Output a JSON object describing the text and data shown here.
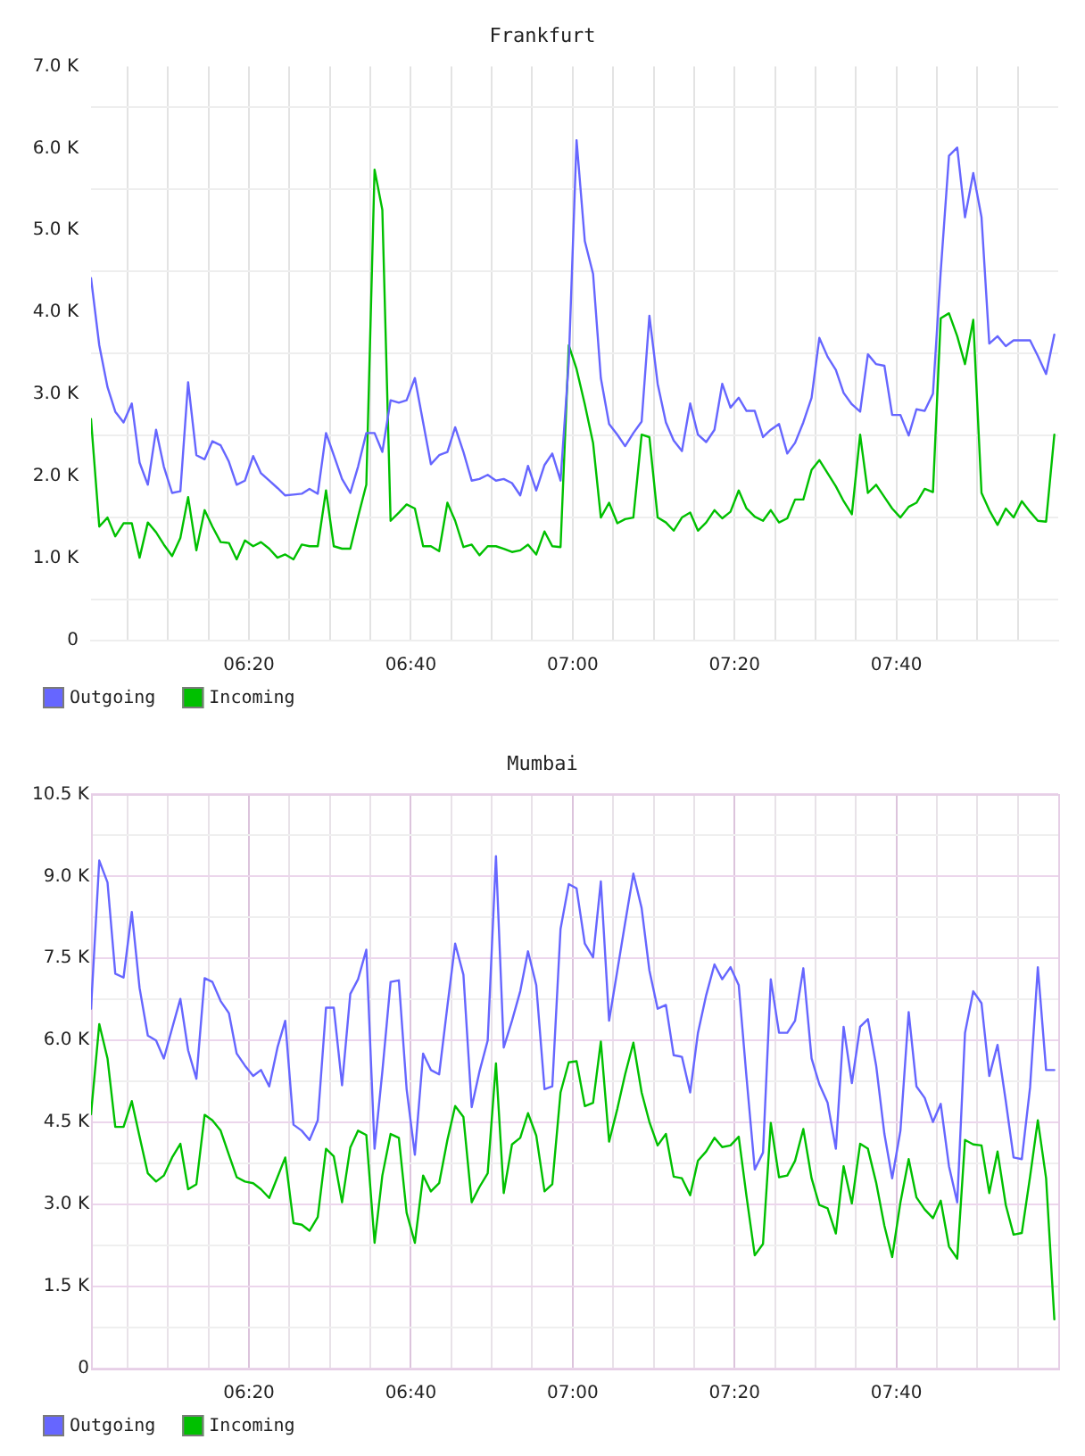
{
  "chart_data": [
    {
      "type": "line",
      "title": "Frankfurt",
      "x": [
        6.008,
        6.025,
        6.042,
        6.058,
        6.075,
        6.092,
        6.108,
        6.125,
        6.142,
        6.158,
        6.175,
        6.192,
        6.208,
        6.225,
        6.242,
        6.258,
        6.275,
        6.292,
        6.308,
        6.325,
        6.342,
        6.358,
        6.375,
        6.392,
        6.408,
        6.425,
        6.442,
        6.458,
        6.475,
        6.492,
        6.508,
        6.525,
        6.542,
        6.558,
        6.575,
        6.592,
        6.608,
        6.625,
        6.642,
        6.658,
        6.675,
        6.692,
        6.708,
        6.725,
        6.742,
        6.758,
        6.775,
        6.792,
        6.808,
        6.825,
        6.842,
        6.858,
        6.875,
        6.892,
        6.908,
        6.925,
        6.942,
        6.958,
        6.975,
        6.992,
        7.008,
        7.025,
        7.042,
        7.058,
        7.075,
        7.092,
        7.108,
        7.125,
        7.142,
        7.158,
        7.175,
        7.192,
        7.208,
        7.225,
        7.242,
        7.258,
        7.275,
        7.292,
        7.308,
        7.325,
        7.342,
        7.358,
        7.375,
        7.392,
        7.408,
        7.425,
        7.442,
        7.458,
        7.475,
        7.492,
        7.508,
        7.525,
        7.542,
        7.558,
        7.575,
        7.592,
        7.608,
        7.625,
        7.642,
        7.658,
        7.675,
        7.692,
        7.708,
        7.725,
        7.742,
        7.758,
        7.775,
        7.792,
        7.808,
        7.825,
        7.842,
        7.858,
        7.875,
        7.892,
        7.908,
        7.925,
        7.942,
        7.958,
        7.975,
        7.992
      ],
      "xlim": [
        6.008,
        8.0
      ],
      "xticks": [
        {
          "value": 6.0833,
          "label": null
        },
        {
          "value": 6.1667,
          "label": null
        },
        {
          "value": 6.25,
          "label": null
        },
        {
          "value": 6.3333,
          "label": "06:20"
        },
        {
          "value": 6.4167,
          "label": null
        },
        {
          "value": 6.5,
          "label": null
        },
        {
          "value": 6.5833,
          "label": null
        },
        {
          "value": 6.6667,
          "label": "06:40"
        },
        {
          "value": 6.75,
          "label": null
        },
        {
          "value": 6.8333,
          "label": null
        },
        {
          "value": 6.9167,
          "label": null
        },
        {
          "value": 7.0,
          "label": "07:00"
        },
        {
          "value": 7.0833,
          "label": null
        },
        {
          "value": 7.1667,
          "label": null
        },
        {
          "value": 7.25,
          "label": null
        },
        {
          "value": 7.3333,
          "label": "07:20"
        },
        {
          "value": 7.4167,
          "label": null
        },
        {
          "value": 7.5,
          "label": null
        },
        {
          "value": 7.5833,
          "label": null
        },
        {
          "value": 7.6667,
          "label": "07:40"
        },
        {
          "value": 7.75,
          "label": null
        },
        {
          "value": 7.8333,
          "label": null
        },
        {
          "value": 7.9167,
          "label": null
        }
      ],
      "ylim": [
        0,
        7000
      ],
      "yticks": [
        0,
        {
          "value": 500,
          "label": null
        },
        {
          "value": 1000,
          "label": "1.0 K"
        },
        {
          "value": 1500,
          "label": null
        },
        {
          "value": 2000,
          "label": "2.0 K"
        },
        {
          "value": 2500,
          "label": null
        },
        {
          "value": 3000,
          "label": "3.0 K"
        },
        {
          "value": 3500,
          "label": null
        },
        {
          "value": 4000,
          "label": "4.0 K"
        },
        {
          "value": 4500,
          "label": null
        },
        {
          "value": 5000,
          "label": "5.0 K"
        },
        {
          "value": 5500,
          "label": null
        },
        {
          "value": 6000,
          "label": "6.0 K"
        },
        {
          "value": 6500,
          "label": null
        },
        {
          "value": 7000,
          "label": "7.0 K"
        }
      ],
      "series": [
        {
          "name": "Outgoing",
          "color": "#6666ff",
          "values": [
            4420,
            3600,
            3090,
            2790,
            2660,
            2890,
            2170,
            1900,
            2570,
            2120,
            1800,
            1820,
            3150,
            2260,
            2210,
            2430,
            2380,
            2180,
            1900,
            1950,
            2250,
            2040,
            1950,
            1860,
            1770,
            1780,
            1790,
            1850,
            1790,
            2530,
            2260,
            1970,
            1800,
            2120,
            2530,
            2530,
            2300,
            2930,
            2900,
            2930,
            3200,
            2660,
            2150,
            2260,
            2300,
            2600,
            2300,
            1950,
            1970,
            2020,
            1950,
            1970,
            1920,
            1770,
            2130,
            1830,
            2140,
            2280,
            1950,
            3400,
            6100,
            4870,
            4470,
            3200,
            2640,
            2510,
            2370,
            2530,
            2670,
            3960,
            3130,
            2660,
            2440,
            2310,
            2890,
            2510,
            2420,
            2570,
            3130,
            2840,
            2960,
            2800,
            2800,
            2480,
            2570,
            2640,
            2280,
            2410,
            2660,
            2960,
            3690,
            3460,
            3300,
            3020,
            2880,
            2790,
            3490,
            3370,
            3350,
            2750,
            2750,
            2500,
            2820,
            2800,
            3010,
            4500,
            5910,
            6010,
            5160,
            5700,
            5160,
            3620,
            3710,
            3590,
            3660,
            3660,
            3660,
            3470,
            3250,
            3730
          ]
        },
        {
          "name": "Incoming",
          "color": "#00c000",
          "values": [
            2700,
            1390,
            1500,
            1270,
            1430,
            1430,
            1010,
            1440,
            1320,
            1170,
            1030,
            1250,
            1750,
            1100,
            1590,
            1390,
            1200,
            1190,
            990,
            1220,
            1150,
            1200,
            1120,
            1010,
            1050,
            990,
            1170,
            1150,
            1150,
            1830,
            1150,
            1120,
            1120,
            1510,
            1900,
            5740,
            5250,
            1460,
            1560,
            1660,
            1610,
            1150,
            1150,
            1090,
            1680,
            1460,
            1140,
            1170,
            1040,
            1150,
            1150,
            1120,
            1080,
            1100,
            1170,
            1050,
            1330,
            1150,
            1140,
            3600,
            3310,
            2880,
            2410,
            1500,
            1680,
            1430,
            1480,
            1500,
            2510,
            2480,
            1500,
            1440,
            1340,
            1500,
            1560,
            1340,
            1440,
            1590,
            1490,
            1570,
            1830,
            1610,
            1510,
            1460,
            1590,
            1440,
            1490,
            1720,
            1720,
            2080,
            2200,
            2040,
            1880,
            1700,
            1540,
            2510,
            1800,
            1900,
            1750,
            1610,
            1500,
            1630,
            1680,
            1850,
            1810,
            3930,
            3990,
            3710,
            3370,
            3910,
            1800,
            1590,
            1410,
            1610,
            1500,
            1700,
            1570,
            1460,
            1450,
            2510
          ]
        }
      ],
      "grid": true,
      "legend": "bottom left",
      "marker": "none",
      "line_style": "solid"
    },
    {
      "type": "line",
      "title": "Mumbai",
      "x": [
        6.008,
        6.025,
        6.042,
        6.058,
        6.075,
        6.092,
        6.108,
        6.125,
        6.142,
        6.158,
        6.175,
        6.192,
        6.208,
        6.225,
        6.242,
        6.258,
        6.275,
        6.292,
        6.308,
        6.325,
        6.342,
        6.358,
        6.375,
        6.392,
        6.408,
        6.425,
        6.442,
        6.458,
        6.475,
        6.492,
        6.508,
        6.525,
        6.542,
        6.558,
        6.575,
        6.592,
        6.608,
        6.625,
        6.642,
        6.658,
        6.675,
        6.692,
        6.708,
        6.725,
        6.742,
        6.758,
        6.775,
        6.792,
        6.808,
        6.825,
        6.842,
        6.858,
        6.875,
        6.892,
        6.908,
        6.925,
        6.942,
        6.958,
        6.975,
        6.992,
        7.008,
        7.025,
        7.042,
        7.058,
        7.075,
        7.092,
        7.108,
        7.125,
        7.142,
        7.158,
        7.175,
        7.192,
        7.208,
        7.225,
        7.242,
        7.258,
        7.275,
        7.292,
        7.308,
        7.325,
        7.342,
        7.358,
        7.375,
        7.392,
        7.408,
        7.425,
        7.442,
        7.458,
        7.475,
        7.492,
        7.508,
        7.525,
        7.542,
        7.558,
        7.575,
        7.592,
        7.608,
        7.625,
        7.642,
        7.658,
        7.675,
        7.692,
        7.708,
        7.725,
        7.742,
        7.758,
        7.775,
        7.792,
        7.808,
        7.825,
        7.842,
        7.858,
        7.875,
        7.892,
        7.908,
        7.925,
        7.942,
        7.958,
        7.975,
        7.992
      ],
      "xlim": [
        6.008,
        8.0
      ],
      "xticks": [
        {
          "value": 6.0833,
          "label": null
        },
        {
          "value": 6.1667,
          "label": null
        },
        {
          "value": 6.25,
          "label": null
        },
        {
          "value": 6.3333,
          "label": "06:20"
        },
        {
          "value": 6.4167,
          "label": null
        },
        {
          "value": 6.5,
          "label": null
        },
        {
          "value": 6.5833,
          "label": null
        },
        {
          "value": 6.6667,
          "label": "06:40"
        },
        {
          "value": 6.75,
          "label": null
        },
        {
          "value": 6.8333,
          "label": null
        },
        {
          "value": 6.9167,
          "label": null
        },
        {
          "value": 7.0,
          "label": "07:00"
        },
        {
          "value": 7.0833,
          "label": null
        },
        {
          "value": 7.1667,
          "label": null
        },
        {
          "value": 7.25,
          "label": null
        },
        {
          "value": 7.3333,
          "label": "07:20"
        },
        {
          "value": 7.4167,
          "label": null
        },
        {
          "value": 7.5,
          "label": null
        },
        {
          "value": 7.5833,
          "label": null
        },
        {
          "value": 7.6667,
          "label": "07:40"
        },
        {
          "value": 7.75,
          "label": null
        },
        {
          "value": 7.8333,
          "label": null
        },
        {
          "value": 7.9167,
          "label": null
        }
      ],
      "ylim": [
        0,
        10500
      ],
      "yticks": [
        0,
        {
          "value": 750,
          "label": null
        },
        {
          "value": 1500,
          "label": "1.5 K"
        },
        {
          "value": 2250,
          "label": null
        },
        {
          "value": 3000,
          "label": "3.0 K"
        },
        {
          "value": 3750,
          "label": null
        },
        {
          "value": 4500,
          "label": "4.5 K"
        },
        {
          "value": 5250,
          "label": null
        },
        {
          "value": 6000,
          "label": "6.0 K"
        },
        {
          "value": 6750,
          "label": null
        },
        {
          "value": 7500,
          "label": "7.5 K"
        },
        {
          "value": 8250,
          "label": null
        },
        {
          "value": 9000,
          "label": "9.0 K"
        },
        {
          "value": 9750,
          "label": null
        },
        {
          "value": 10500,
          "label": "10.5 K"
        }
      ],
      "series": [
        {
          "name": "Outgoing",
          "color": "#6666ff",
          "values": [
            6580,
            9290,
            8890,
            7220,
            7150,
            8350,
            6960,
            6090,
            6000,
            5670,
            6220,
            6760,
            5820,
            5300,
            7140,
            7070,
            6720,
            6500,
            5760,
            5540,
            5350,
            5460,
            5160,
            5870,
            6360,
            4460,
            4350,
            4180,
            4540,
            6600,
            6600,
            5180,
            6850,
            7120,
            7660,
            4020,
            5430,
            7070,
            7100,
            5110,
            3910,
            5760,
            5460,
            5380,
            6630,
            7770,
            7200,
            4780,
            5430,
            6000,
            9370,
            5870,
            6360,
            6900,
            7630,
            7010,
            5110,
            5160,
            8040,
            8860,
            8780,
            7770,
            7520,
            8910,
            6360,
            7280,
            8150,
            9050,
            8420,
            7280,
            6580,
            6650,
            5730,
            5700,
            5050,
            6140,
            6830,
            7390,
            7120,
            7340,
            7010,
            5330,
            3640,
            3950,
            7120,
            6140,
            6140,
            6360,
            7320,
            5670,
            5200,
            4860,
            4020,
            6250,
            5220,
            6250,
            6390,
            5540,
            4290,
            3480,
            4350,
            6520,
            5160,
            4950,
            4510,
            4840,
            3700,
            3040,
            6140,
            6900,
            6680,
            5350,
            5920,
            4890,
            3860,
            3830,
            5140,
            7340,
            5460,
            5460
          ]
        },
        {
          "name": "Incoming",
          "color": "#00c000",
          "values": [
            4650,
            6300,
            5670,
            4420,
            4420,
            4890,
            4240,
            3570,
            3420,
            3530,
            3860,
            4110,
            3280,
            3370,
            4640,
            4540,
            4350,
            3910,
            3500,
            3420,
            3390,
            3280,
            3120,
            3500,
            3860,
            2660,
            2630,
            2520,
            2770,
            4020,
            3880,
            3040,
            4040,
            4350,
            4270,
            2300,
            3530,
            4290,
            4220,
            2850,
            2300,
            3530,
            3240,
            3390,
            4180,
            4800,
            4600,
            3040,
            3320,
            3570,
            5580,
            3210,
            4100,
            4220,
            4670,
            4260,
            3240,
            3370,
            5050,
            5600,
            5620,
            4800,
            4860,
            5980,
            4150,
            4750,
            5380,
            5960,
            5050,
            4510,
            4080,
            4290,
            3510,
            3480,
            3170,
            3800,
            3970,
            4220,
            4050,
            4080,
            4240,
            3150,
            2070,
            2280,
            4490,
            3500,
            3530,
            3800,
            4380,
            3480,
            2990,
            2930,
            2470,
            3700,
            3020,
            4110,
            4020,
            3400,
            2610,
            2040,
            3040,
            3830,
            3130,
            2910,
            2750,
            3070,
            2230,
            2010,
            4180,
            4100,
            4080,
            3210,
            3970,
            2990,
            2450,
            2480,
            3510,
            4540,
            3480,
            900
          ]
        }
      ],
      "grid": true,
      "legend": "bottom left",
      "marker": "none",
      "line_style": "solid"
    }
  ]
}
